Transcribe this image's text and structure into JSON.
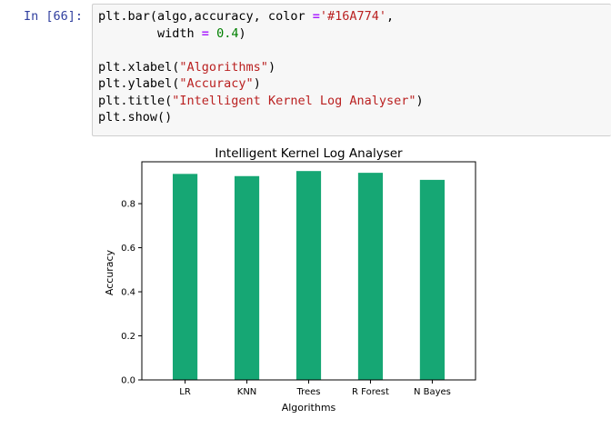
{
  "cell": {
    "prompt": "In [66]:",
    "code_lines": [
      [
        {
          "t": "plt.bar(algo,accuracy, color "
        },
        {
          "t": "=",
          "c": "op"
        },
        {
          "t": "'#16A774'",
          "c": "str"
        },
        {
          "t": ","
        }
      ],
      [
        {
          "t": "        width "
        },
        {
          "t": "=",
          "c": "op"
        },
        {
          "t": " "
        },
        {
          "t": "0.4",
          "c": "num"
        },
        {
          "t": ")"
        }
      ],
      [
        {
          "t": ""
        }
      ],
      [
        {
          "t": "plt.xlabel("
        },
        {
          "t": "\"Algorithms\"",
          "c": "str"
        },
        {
          "t": ")"
        }
      ],
      [
        {
          "t": "plt.ylabel("
        },
        {
          "t": "\"Accuracy\"",
          "c": "str"
        },
        {
          "t": ")"
        }
      ],
      [
        {
          "t": "plt.title("
        },
        {
          "t": "\"Intelligent Kernel Log Analyser\"",
          "c": "str"
        },
        {
          "t": ")"
        }
      ],
      [
        {
          "t": "plt.show()"
        }
      ]
    ]
  },
  "chart_data": {
    "type": "bar",
    "title": "Intelligent Kernel Log Analyser",
    "xlabel": "Algorithms",
    "ylabel": "Accuracy",
    "categories": [
      "LR",
      "KNN",
      "Trees",
      "R Forest",
      "N Bayes"
    ],
    "values": [
      0.935,
      0.925,
      0.948,
      0.94,
      0.908
    ],
    "bar_color": "#16A774",
    "bar_width": 0.4,
    "ylim": [
      0,
      0.99
    ],
    "yticks": [
      0.0,
      0.2,
      0.4,
      0.6,
      0.8
    ],
    "ytick_labels": [
      "0.0",
      "0.2",
      "0.4",
      "0.6",
      "0.8"
    ],
    "grid": false
  }
}
